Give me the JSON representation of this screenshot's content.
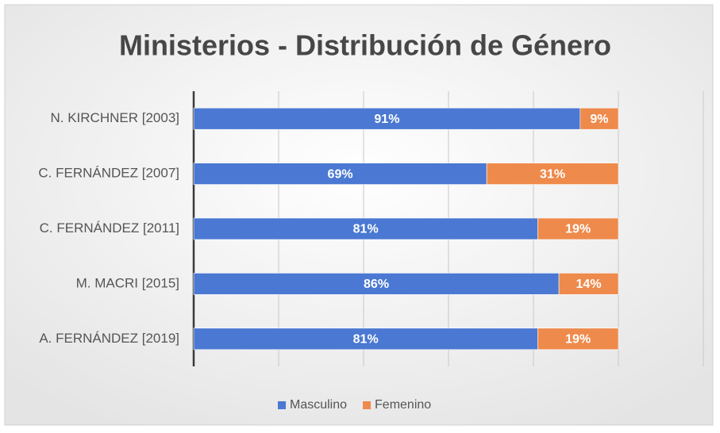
{
  "chart_data": {
    "type": "stacked_bar_horizontal",
    "title": "Ministerios - Distribución de Género",
    "categories": [
      "N. KIRCHNER [2003]",
      "C. FERNÁNDEZ [2007]",
      "C. FERNÁNDEZ [2011]",
      "M. MACRI [2015]",
      "A. FERNÁNDEZ [2019]"
    ],
    "series": [
      {
        "name": "Masculino",
        "color": "#4a78d2",
        "values": [
          91,
          69,
          81,
          86,
          81
        ],
        "value_labels": [
          "91%",
          "69%",
          "81%",
          "86%",
          "81%"
        ]
      },
      {
        "name": "Femenino",
        "color": "#ee8a4b",
        "values": [
          9,
          31,
          19,
          14,
          19
        ],
        "value_labels": [
          "9%",
          "31%",
          "19%",
          "14%",
          "19%"
        ]
      }
    ],
    "xlim": [
      0,
      120
    ],
    "xticks": [
      0,
      20,
      40,
      60,
      80,
      100,
      120
    ],
    "grid": true,
    "legend": "bottom"
  }
}
